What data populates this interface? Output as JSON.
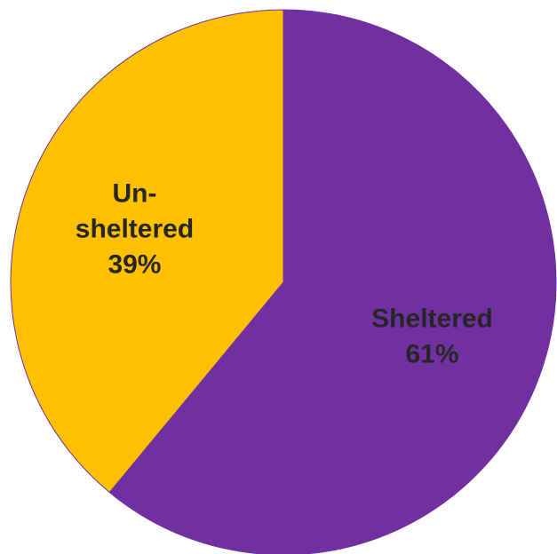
{
  "chart_data": {
    "type": "pie",
    "categories": [
      "Sheltered",
      "Un-sheltered"
    ],
    "values": [
      61,
      39
    ],
    "unit": "%",
    "colors": [
      "#7030a0",
      "#ffc000"
    ],
    "labels": [
      {
        "lines": [
          "Sheltered",
          "61%"
        ]
      },
      {
        "lines": [
          "Un-",
          "sheltered",
          "39%"
        ]
      }
    ],
    "start_angle": "top",
    "direction": "clockwise",
    "legend": "none"
  }
}
